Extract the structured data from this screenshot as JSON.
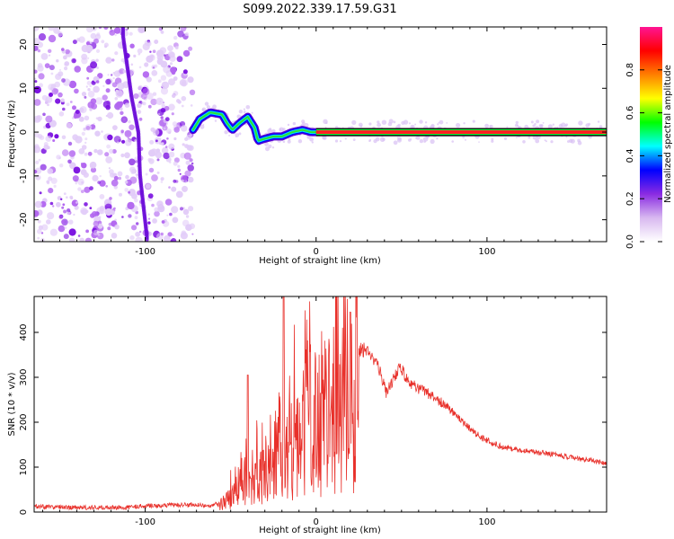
{
  "figure": {
    "title": "S099.2022.339.17.59.G31"
  },
  "chart_data": [
    {
      "type": "heatmap",
      "title": "S099.2022.339.17.59.G31",
      "xlabel": "Height of straight line (km)",
      "ylabel": "Frequency (Hz)",
      "xlim": [
        -165,
        170
      ],
      "ylim": [
        -25,
        24
      ],
      "x_ticks": [
        -100,
        0,
        100
      ],
      "y_ticks": [
        -20,
        -10,
        0,
        10,
        20
      ],
      "colorbar": {
        "label": "Normalized spectral amplitude",
        "range": [
          0,
          1
        ],
        "ticks": [
          0.0,
          0.2,
          0.4,
          0.6,
          0.8
        ],
        "colormap": [
          "#ffffff",
          "#d8b8f0",
          "#8a2be2",
          "#0000ff",
          "#00ffff",
          "#00ff00",
          "#ffff00",
          "#ff7f00",
          "#ff0000",
          "#ff1493"
        ]
      },
      "features": {
        "noise_region_x": [
          -165,
          -72
        ],
        "drift_line": [
          {
            "x": -113,
            "y": 22
          },
          {
            "x": -108,
            "y": 8
          },
          {
            "x": -104,
            "y": 0
          },
          {
            "x": -103,
            "y": -10
          },
          {
            "x": -99,
            "y": -24
          }
        ],
        "signal_track": [
          {
            "x": -72,
            "y": 0.5
          },
          {
            "x": -68,
            "y": 3
          },
          {
            "x": -62,
            "y": 4.5
          },
          {
            "x": -55,
            "y": 4
          },
          {
            "x": -52,
            "y": 2
          },
          {
            "x": -49,
            "y": 0.5
          },
          {
            "x": -45,
            "y": 2
          },
          {
            "x": -40,
            "y": 3.5
          },
          {
            "x": -36,
            "y": 1
          },
          {
            "x": -34,
            "y": -2
          },
          {
            "x": -30,
            "y": -1.5
          },
          {
            "x": -25,
            "y": -1
          },
          {
            "x": -20,
            "y": -1
          },
          {
            "x": -14,
            "y": 0
          },
          {
            "x": -8,
            "y": 0.5
          },
          {
            "x": -3,
            "y": 0
          },
          {
            "x": 0,
            "y": 0
          },
          {
            "x": 170,
            "y": 0
          }
        ]
      }
    },
    {
      "type": "line",
      "xlabel": "Height of straight line (km)",
      "ylabel": "SNR (10 * v/v)",
      "xlim": [
        -165,
        170
      ],
      "ylim": [
        0,
        480
      ],
      "x_ticks": [
        -100,
        0,
        100
      ],
      "y_ticks": [
        0,
        100,
        200,
        300,
        400
      ],
      "series": [
        {
          "color": "#e8302a",
          "envelope": [
            {
              "x": -165,
              "y": 12
            },
            {
              "x": -140,
              "y": 10
            },
            {
              "x": -110,
              "y": 10
            },
            {
              "x": -100,
              "y": 14
            },
            {
              "x": -80,
              "y": 16
            },
            {
              "x": -60,
              "y": 15
            },
            {
              "x": -55,
              "y": 25
            },
            {
              "x": -48,
              "y": 60
            },
            {
              "x": -42,
              "y": 90
            },
            {
              "x": -35,
              "y": 110
            },
            {
              "x": -28,
              "y": 140
            },
            {
              "x": -20,
              "y": 190
            },
            {
              "x": -12,
              "y": 230
            },
            {
              "x": -5,
              "y": 260
            },
            {
              "x": 5,
              "y": 300
            },
            {
              "x": 15,
              "y": 340
            },
            {
              "x": 22,
              "y": 365
            },
            {
              "x": 30,
              "y": 360
            },
            {
              "x": 36,
              "y": 330
            },
            {
              "x": 41,
              "y": 265
            },
            {
              "x": 46,
              "y": 300
            },
            {
              "x": 49,
              "y": 325
            },
            {
              "x": 55,
              "y": 285
            },
            {
              "x": 65,
              "y": 265
            },
            {
              "x": 75,
              "y": 240
            },
            {
              "x": 85,
              "y": 205
            },
            {
              "x": 95,
              "y": 170
            },
            {
              "x": 105,
              "y": 150
            },
            {
              "x": 115,
              "y": 140
            },
            {
              "x": 125,
              "y": 135
            },
            {
              "x": 140,
              "y": 128
            },
            {
              "x": 155,
              "y": 118
            },
            {
              "x": 170,
              "y": 110
            }
          ],
          "peaks": [
            {
              "x": -19,
              "y": 480
            },
            {
              "x": 20,
              "y": 445
            },
            {
              "x": -40,
              "y": 305
            }
          ]
        }
      ]
    }
  ]
}
